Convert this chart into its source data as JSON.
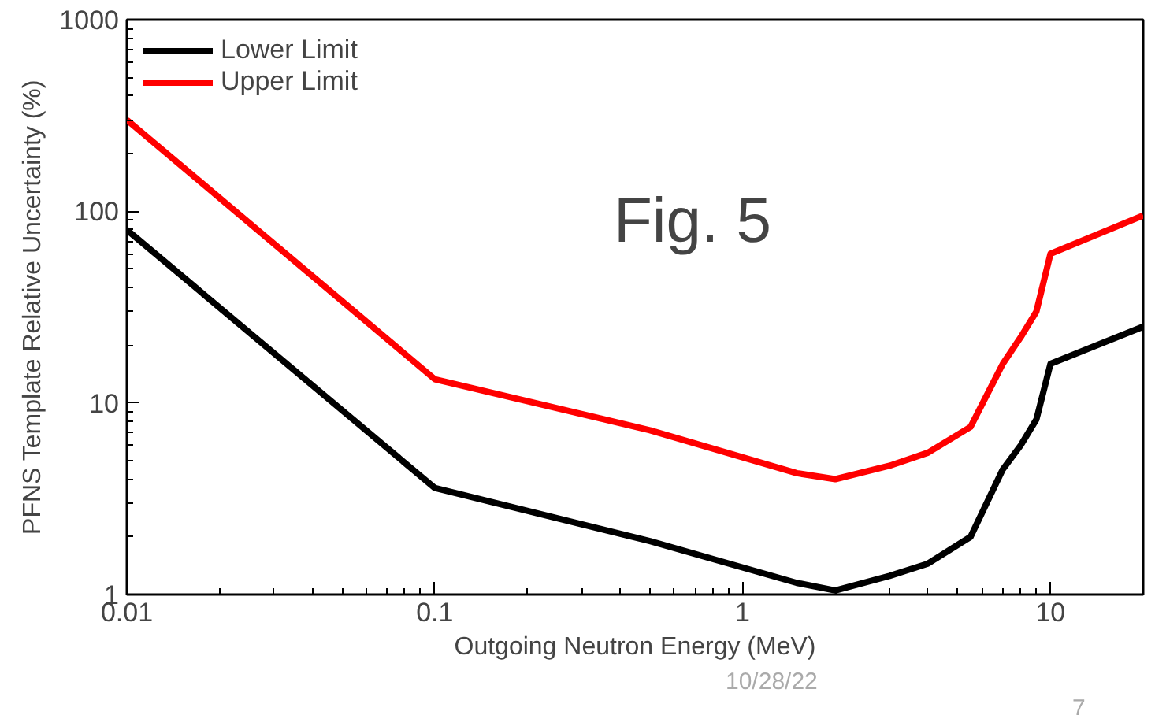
{
  "chart_data": {
    "type": "line",
    "xlabel": "Outgoing Neutron Energy (MeV)",
    "ylabel": "PFNS Template Relative Uncertainty (%)",
    "log": "xy",
    "grid": false,
    "legend": "top left",
    "marker": "none",
    "line_style": "solid",
    "xlim": [
      0.01,
      20
    ],
    "xticks": [
      0.01,
      0.1,
      1,
      10
    ],
    "ylim": [
      1,
      1000
    ],
    "yticks": [
      1,
      10,
      100,
      1000
    ],
    "x": [
      0.01,
      0.1,
      0.5,
      1.5,
      2,
      3,
      4,
      5.5,
      7,
      8,
      9,
      10,
      20
    ],
    "series": [
      {
        "name": "Lower Limit",
        "color": "#000000",
        "values": [
          80,
          3.6,
          1.9,
          1.15,
          1.05,
          1.25,
          1.45,
          2.0,
          4.5,
          6,
          8.2,
          16,
          25
        ]
      },
      {
        "name": "Upper Limit",
        "color": "#ff0000",
        "values": [
          300,
          13.3,
          7.2,
          4.3,
          4.0,
          4.7,
          5.5,
          7.5,
          16,
          22,
          30,
          60,
          95
        ]
      }
    ],
    "annotations": [
      "Fig. 5",
      "10/28/22",
      "7"
    ]
  }
}
